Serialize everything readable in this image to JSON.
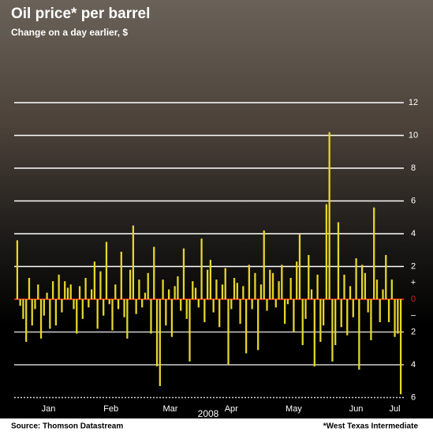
{
  "chart_data": {
    "type": "bar",
    "title": "Oil price* per barrel",
    "subtitle": "Change on a day earlier, $",
    "x_label": "2008",
    "source": "Source: Thomson Datastream",
    "footnote": "*West Texas Intermediate",
    "color": "#e6d72a",
    "zero_color": "#d0281e",
    "grid": true,
    "ylim": [
      -6,
      12.5
    ],
    "yticks": [
      {
        "value": -6,
        "label": "6"
      },
      {
        "value": -4,
        "label": "4"
      },
      {
        "value": -2,
        "label": "2"
      },
      0,
      2,
      4,
      6,
      8,
      10,
      12
    ],
    "sign_labels": [
      {
        "value": 1,
        "label": "+"
      },
      {
        "value": -1,
        "label": "–"
      }
    ],
    "xlim": [
      0,
      130
    ],
    "xticks": [
      {
        "value": 11,
        "label": "Jan"
      },
      {
        "value": 32,
        "label": "Feb"
      },
      {
        "value": 52,
        "label": "Mar"
      },
      {
        "value": 72.5,
        "label": "Apr"
      },
      {
        "value": 93.5,
        "label": "May"
      },
      {
        "value": 114.5,
        "label": "Jun"
      },
      {
        "value": 127.5,
        "label": "Jul"
      }
    ],
    "values": [
      3.6,
      -0.4,
      -1.2,
      -2.6,
      1.3,
      -1.6,
      -0.6,
      0.9,
      -2.4,
      -1.0,
      0.4,
      -1.8,
      1.1,
      -1.6,
      1.5,
      -0.8,
      1.1,
      0.7,
      0.9,
      -0.6,
      -2.1,
      0.8,
      -1.2,
      1.3,
      -0.5,
      0.6,
      2.3,
      -1.8,
      1.7,
      -1.0,
      3.5,
      -0.3,
      -1.9,
      0.9,
      -0.6,
      2.9,
      -1.1,
      -2.4,
      1.8,
      4.5,
      -0.9,
      1.2,
      -0.5,
      0.4,
      1.6,
      -2.1,
      3.2,
      -4.1,
      -5.3,
      1.2,
      -1.6,
      0.6,
      -2.3,
      0.8,
      1.4,
      -0.7,
      3.1,
      -1.2,
      -3.8,
      1.1,
      0.7,
      -0.5,
      3.7,
      -1.4,
      1.8,
      2.4,
      -0.8,
      1.2,
      -1.7,
      0.9,
      1.9,
      -4.0,
      -0.6,
      1.3,
      1.0,
      -1.5,
      0.8,
      -3.3,
      2.1,
      -0.6,
      1.6,
      -3.1,
      0.9,
      4.2,
      -0.7,
      1.8,
      1.6,
      -0.5,
      1.1,
      2.1,
      -1.5,
      -0.3,
      1.3,
      -2.0,
      2.3,
      4.0,
      -2.8,
      -1.2,
      2.7,
      0.6,
      -4.1,
      1.5,
      -2.6,
      -1.6,
      5.8,
      10.2,
      -3.8,
      -2.8,
      4.7,
      -1.7,
      1.5,
      -2.2,
      0.8,
      -1.1,
      2.5,
      -4.3,
      2.1,
      1.6,
      -0.8,
      -2.5,
      5.6,
      1.2,
      -1.4,
      0.6,
      2.7,
      -1.4,
      1.2,
      -2.3,
      -2.1,
      -5.8
    ]
  }
}
